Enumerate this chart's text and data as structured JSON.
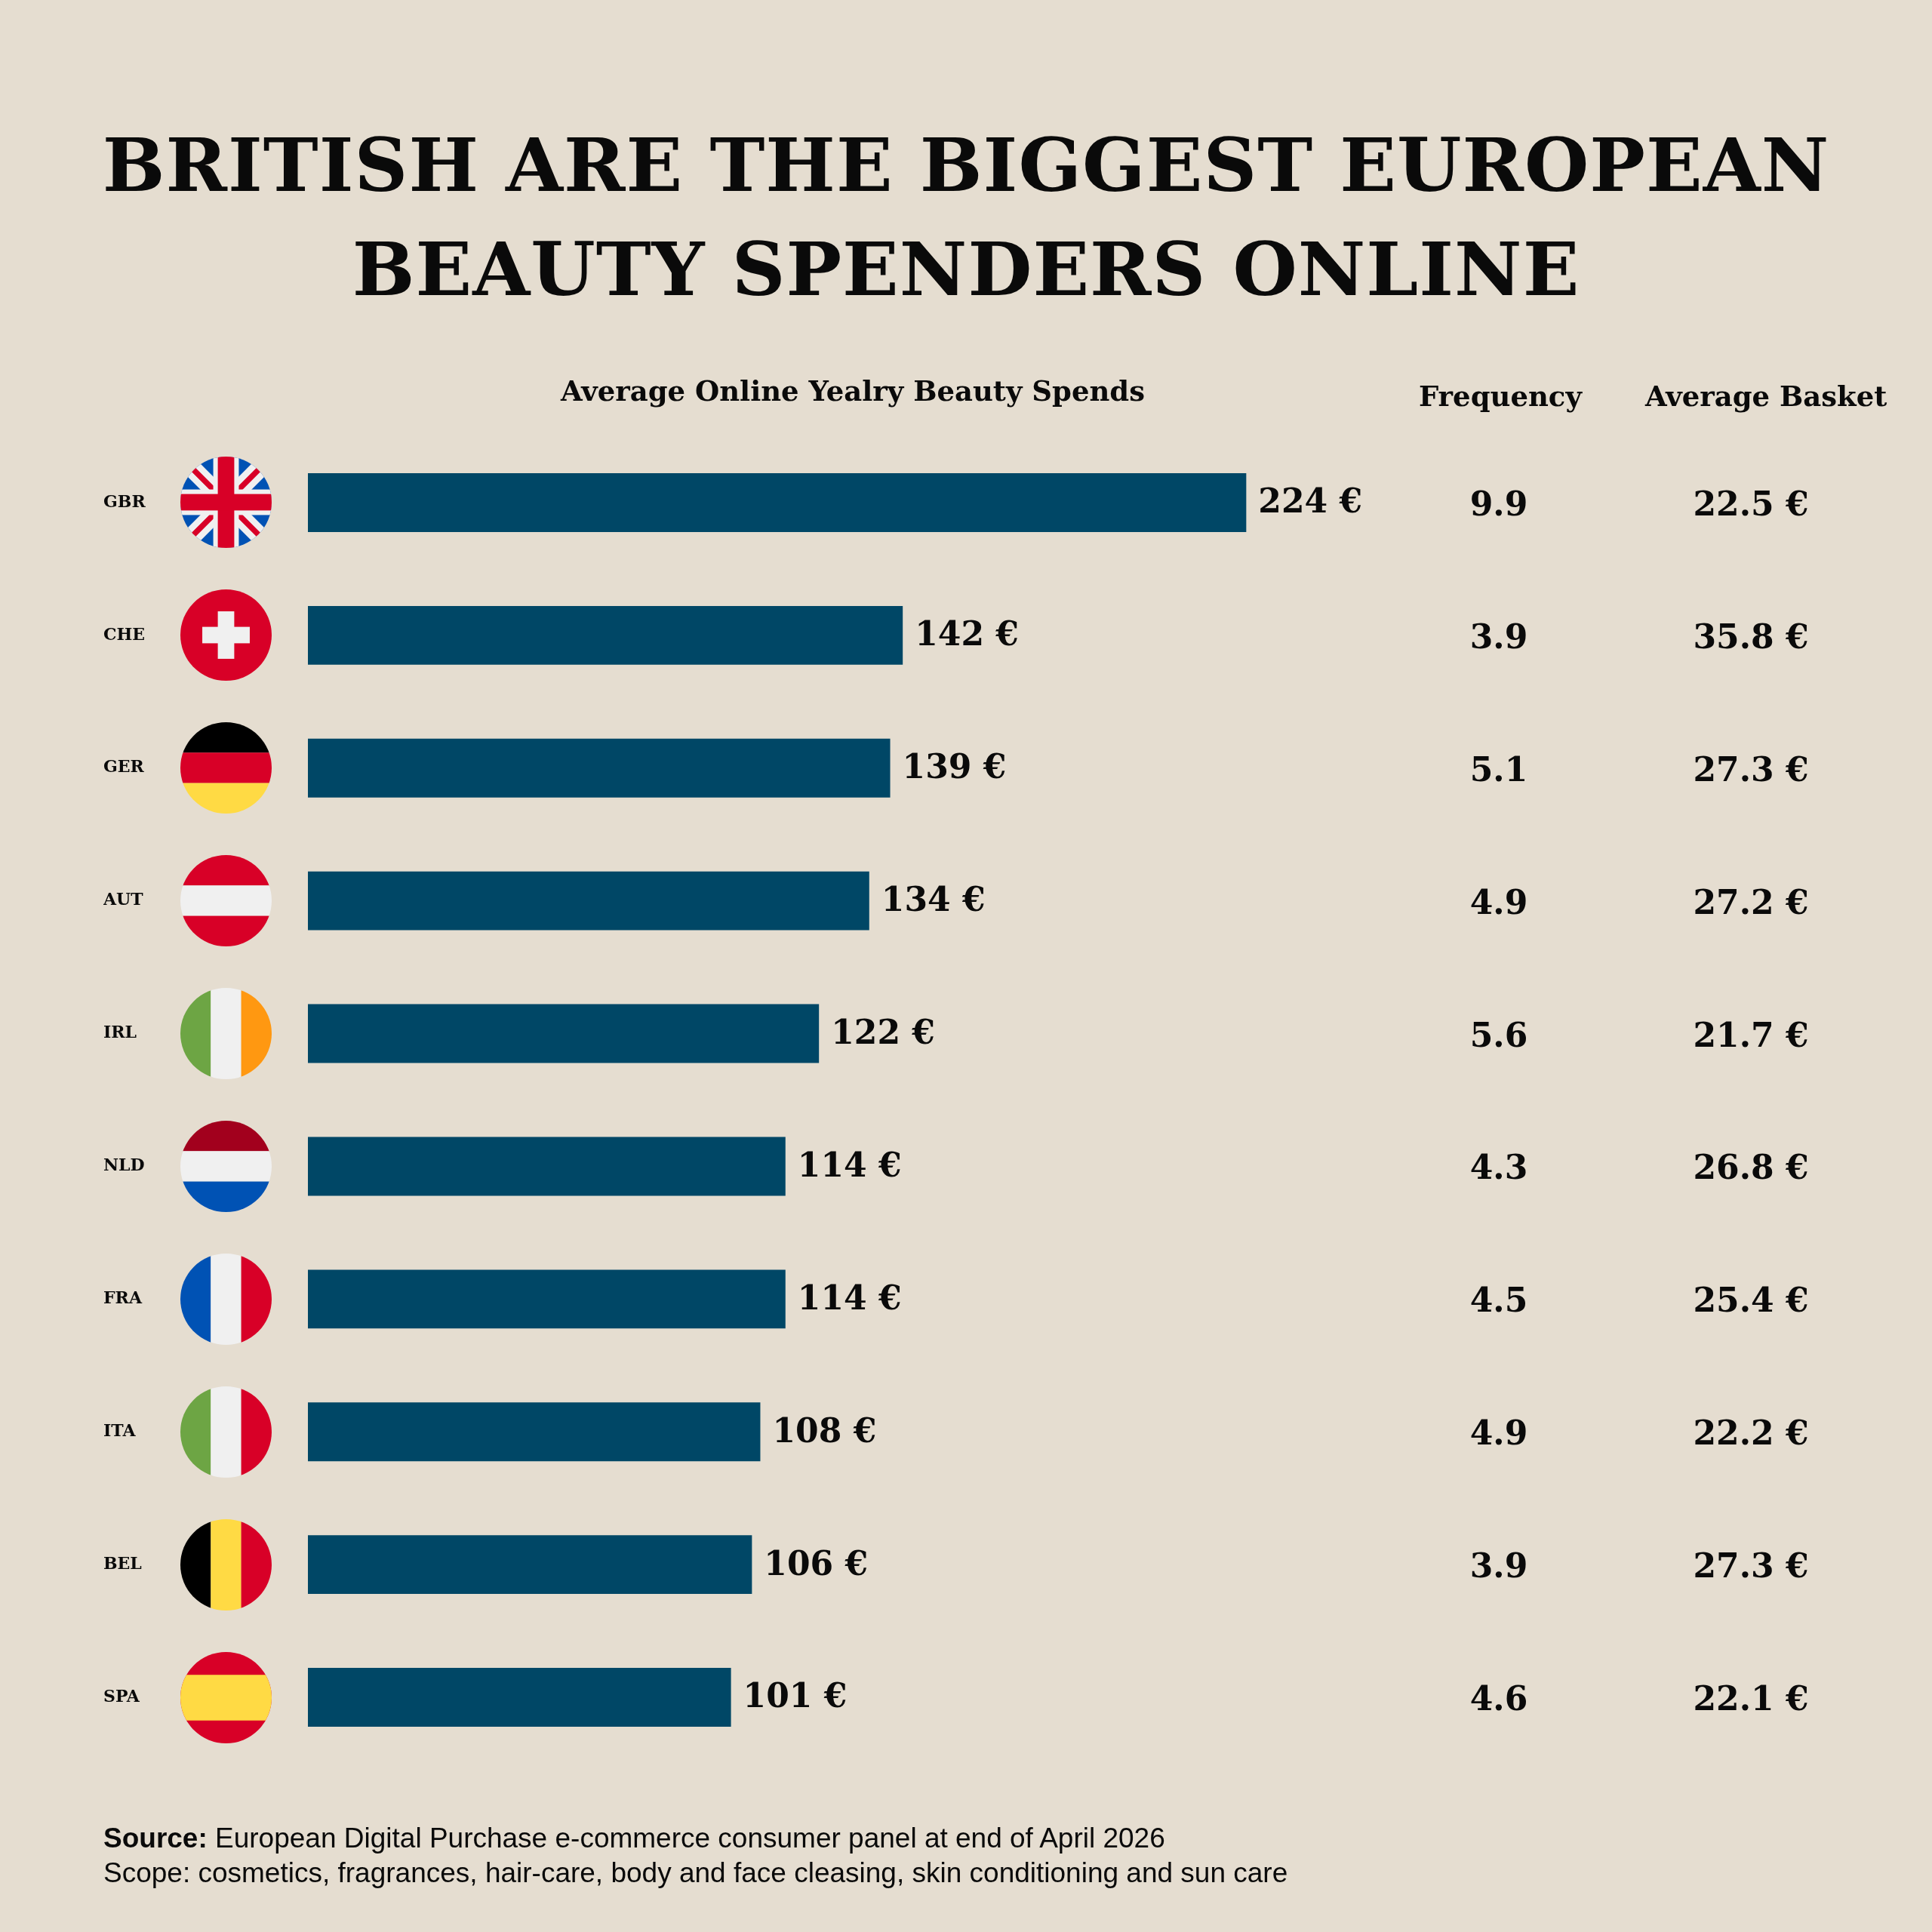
{
  "chart_data": [
    {
      "type": "bar",
      "orientation": "horizontal",
      "title": "BRITISH ARE THE BIGGEST EUROPEAN BEAUTY SPENDERS ONLINE",
      "subtitle": "Average Online Yealry Beauty Spends",
      "categories": [
        "GBR",
        "CHE",
        "GER",
        "AUT",
        "IRL",
        "NLD",
        "FRA",
        "ITA",
        "BEL",
        "SPA"
      ],
      "values": [
        224,
        142,
        139,
        134,
        122,
        114,
        114,
        108,
        106,
        101
      ],
      "color": "#004766",
      "value_labels": [
        "224 €",
        "142 €",
        "139 €",
        "134 €",
        "122 €",
        "114 €",
        "114 €",
        "108 €",
        "106 €",
        "101 €"
      ],
      "grid": false,
      "legend": false,
      "tick_labels": "y",
      "annotations": [
        "Source: European Digital Purchase e-commerce consumer panel at end of April 2026",
        "Scope: cosmetics, fragrances, hair-care, body and face cleasing, skin conditioning and sun care"
      ]
    },
    {
      "type": "other",
      "title": "Frequency",
      "categories": [
        null,
        null,
        null,
        null,
        null,
        null,
        null,
        null,
        null,
        null
      ],
      "values": [
        9.9,
        3.9,
        5.1,
        4.9,
        5.6,
        4.3,
        4.5,
        4.9,
        3.9,
        4.6
      ],
      "data_labels": true
    },
    {
      "type": "other",
      "title": "Average Basket",
      "categories": [
        null,
        null,
        null,
        null,
        null,
        null,
        null,
        null,
        null,
        null
      ],
      "values": [
        22.5,
        35.8,
        27.3,
        27.2,
        21.7,
        26.8,
        25.4,
        22.2,
        27.3,
        22.1
      ],
      "value_labels": [
        "22.5 €",
        "35.8 €",
        "27.3 €",
        "27.2 €",
        "21.7 €",
        "26.8 €",
        "25.4 €",
        "22.2 €",
        "27.3 €",
        "22.1 €"
      ]
    }
  ]
}
